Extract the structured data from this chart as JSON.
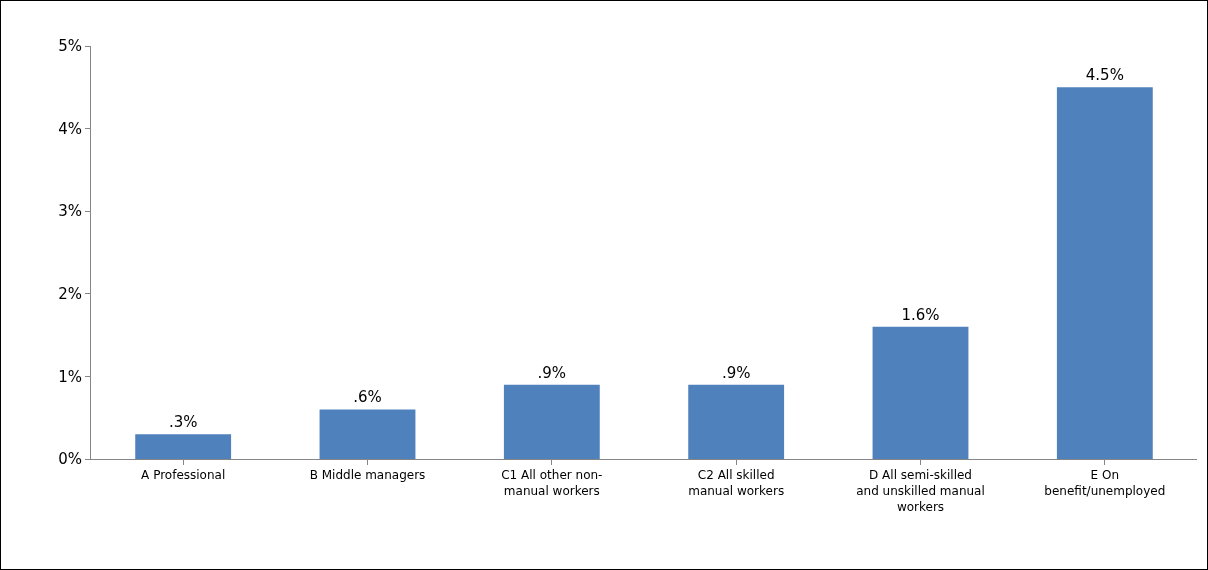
{
  "chart_data": {
    "type": "bar",
    "categories": [
      "A Professional",
      "B Middle managers",
      "C1 All other non-manual workers",
      "C2 All skilled manual workers",
      "D All semi-skilled and unskilled manual workers",
      "E On benefit/unemployed"
    ],
    "values": [
      0.3,
      0.6,
      0.9,
      0.9,
      1.6,
      4.5
    ],
    "value_labels": [
      ".3%",
      ".6%",
      ".9%",
      ".9%",
      "1.6%",
      "4.5%"
    ],
    "color": "#4f81bd",
    "ylim": [
      0,
      5
    ],
    "yticks": [
      {
        "value": 0,
        "label": "0%"
      },
      {
        "value": 1,
        "label": "1%"
      },
      {
        "value": 2,
        "label": "2%"
      },
      {
        "value": 3,
        "label": "3%"
      },
      {
        "value": 4,
        "label": "4%"
      },
      {
        "value": 5,
        "label": "5%"
      }
    ],
    "grid": false,
    "legend": false
  }
}
